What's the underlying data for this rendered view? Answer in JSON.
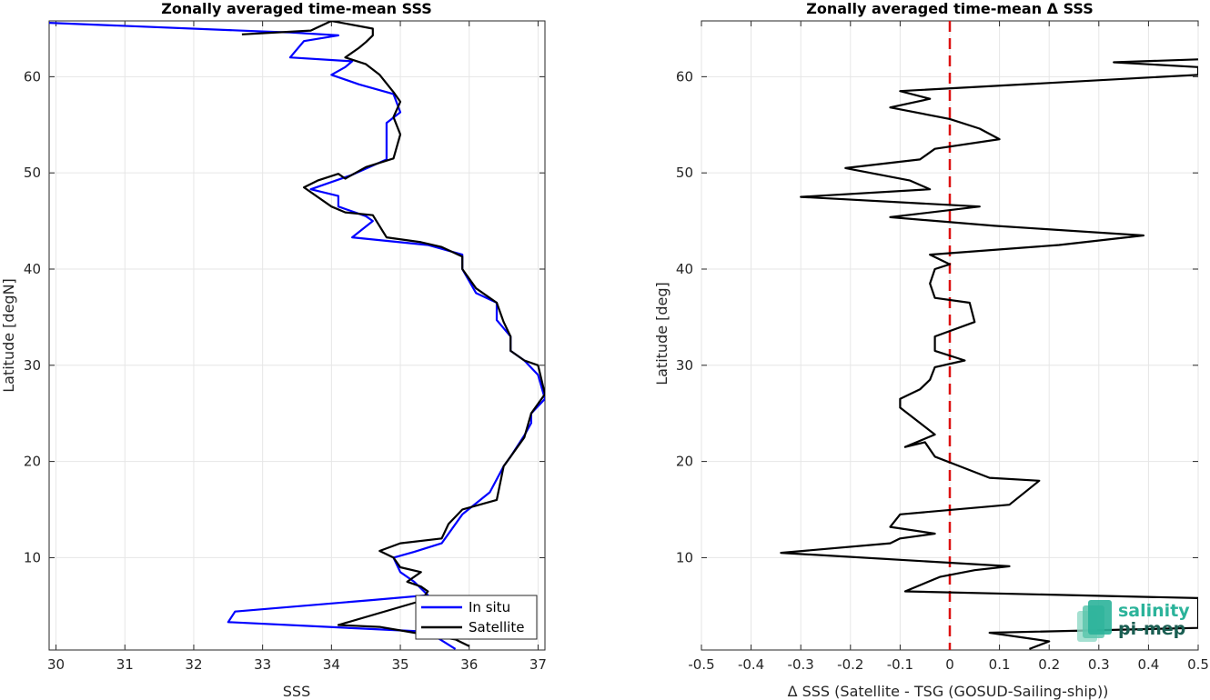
{
  "colors": {
    "insitu": "#0000ff",
    "satellite": "#000000",
    "zero_line": "#dd1111",
    "logo_top": "#2bb39a",
    "logo_bottom": "#1a5e52"
  },
  "logo": {
    "line1": "salinity",
    "line2": "pi-mep"
  },
  "chart_data": [
    {
      "type": "line",
      "title": "Zonally averaged time-mean SSS",
      "xlabel": "SSS",
      "ylabel": "Latitude [degN]",
      "xlim": [
        29.9,
        37.1
      ],
      "ylim": [
        0.4,
        65.8
      ],
      "xticks": [
        30,
        31,
        32,
        33,
        34,
        35,
        36,
        37
      ],
      "yticks": [
        10,
        20,
        30,
        40,
        50,
        60
      ],
      "grid": true,
      "legend": {
        "position": "bottom-right",
        "entries": [
          "In situ",
          "Satellite"
        ]
      },
      "series": [
        {
          "name": "In situ",
          "color": "#0000ff",
          "points": [
            [
              35.8,
              0.5
            ],
            [
              35.4,
              2.3
            ],
            [
              32.5,
              3.3
            ],
            [
              32.6,
              4.4
            ],
            [
              34.6,
              5.6
            ],
            [
              35.4,
              6.1
            ],
            [
              35.2,
              7.5
            ],
            [
              35.0,
              8.5
            ],
            [
              34.9,
              10.0
            ],
            [
              35.2,
              10.6
            ],
            [
              35.6,
              11.5
            ],
            [
              35.9,
              14.5
            ],
            [
              36.3,
              16.8
            ],
            [
              36.5,
              19.5
            ],
            [
              36.6,
              20.5
            ],
            [
              36.8,
              22.7
            ],
            [
              36.9,
              24.0
            ],
            [
              36.9,
              25.0
            ],
            [
              37.1,
              26.5
            ],
            [
              37.0,
              29.0
            ],
            [
              36.8,
              30.5
            ],
            [
              36.6,
              31.5
            ],
            [
              36.6,
              33.0
            ],
            [
              36.4,
              34.7
            ],
            [
              36.4,
              36.5
            ],
            [
              36.1,
              37.5
            ],
            [
              35.9,
              40.0
            ],
            [
              35.9,
              41.5
            ],
            [
              35.4,
              42.5
            ],
            [
              34.3,
              43.3
            ],
            [
              34.6,
              45.0
            ],
            [
              34.5,
              45.5
            ],
            [
              34.1,
              46.5
            ],
            [
              34.1,
              47.6
            ],
            [
              33.7,
              48.3
            ],
            [
              34.3,
              49.8
            ],
            [
              34.8,
              51.4
            ],
            [
              34.8,
              53.3
            ],
            [
              34.8,
              55.2
            ],
            [
              35.0,
              56.3
            ],
            [
              34.9,
              58.2
            ],
            [
              34.4,
              59.2
            ],
            [
              34.0,
              60.2
            ],
            [
              34.2,
              61.0
            ],
            [
              34.3,
              61.6
            ],
            [
              33.4,
              62.0
            ],
            [
              33.6,
              63.7
            ],
            [
              34.1,
              64.3
            ],
            [
              33.4,
              64.6
            ],
            [
              33.0,
              64.7
            ],
            [
              29.9,
              65.6
            ]
          ]
        },
        {
          "name": "Satellite",
          "color": "#000000",
          "points": [
            [
              36.0,
              0.8
            ],
            [
              35.8,
              1.5
            ],
            [
              35.2,
              2.2
            ],
            [
              34.7,
              2.8
            ],
            [
              34.1,
              3.0
            ],
            [
              35.3,
              5.5
            ],
            [
              35.4,
              6.5
            ],
            [
              35.3,
              7.0
            ],
            [
              35.1,
              7.5
            ],
            [
              35.3,
              8.5
            ],
            [
              35.0,
              9.0
            ],
            [
              34.9,
              10.0
            ],
            [
              34.7,
              10.7
            ],
            [
              35.0,
              11.5
            ],
            [
              35.6,
              12.0
            ],
            [
              35.7,
              13.5
            ],
            [
              35.9,
              15.0
            ],
            [
              36.4,
              16.0
            ],
            [
              36.5,
              19.5
            ],
            [
              36.6,
              20.5
            ],
            [
              36.8,
              22.5
            ],
            [
              36.9,
              25.0
            ],
            [
              37.1,
              27.0
            ],
            [
              37.0,
              30.0
            ],
            [
              36.8,
              30.5
            ],
            [
              36.6,
              31.5
            ],
            [
              36.6,
              33.0
            ],
            [
              36.5,
              34.5
            ],
            [
              36.4,
              36.5
            ],
            [
              36.1,
              38.0
            ],
            [
              35.9,
              40.0
            ],
            [
              35.9,
              41.3
            ],
            [
              35.6,
              42.3
            ],
            [
              35.3,
              42.8
            ],
            [
              34.8,
              43.3
            ],
            [
              34.6,
              45.6
            ],
            [
              34.2,
              45.9
            ],
            [
              34.0,
              46.5
            ],
            [
              33.6,
              48.5
            ],
            [
              33.8,
              49.2
            ],
            [
              34.1,
              49.9
            ],
            [
              34.2,
              49.4
            ],
            [
              34.5,
              50.6
            ],
            [
              34.9,
              51.5
            ],
            [
              35.0,
              54.0
            ],
            [
              34.9,
              55.8
            ],
            [
              35.0,
              57.4
            ],
            [
              34.9,
              58.4
            ],
            [
              34.7,
              60.2
            ],
            [
              34.5,
              61.3
            ],
            [
              34.2,
              62.0
            ],
            [
              34.4,
              63.0
            ],
            [
              34.5,
              63.6
            ],
            [
              34.6,
              64.3
            ],
            [
              34.6,
              65.0
            ],
            [
              34.0,
              65.8
            ],
            [
              33.7,
              64.8
            ],
            [
              32.7,
              64.4
            ]
          ]
        }
      ]
    },
    {
      "type": "line",
      "title": "Zonally averaged time-mean Δ SSS",
      "xlabel": "Δ SSS (Satellite - TSG (GOSUD-Sailing-ship))",
      "ylabel": "Latitude [deg]",
      "xlim": [
        -0.5,
        0.5
      ],
      "ylim": [
        0.4,
        65.8
      ],
      "xticks": [
        -0.5,
        -0.4,
        -0.3,
        -0.2,
        -0.1,
        0,
        0.1,
        0.2,
        0.3,
        0.4,
        0.5
      ],
      "yticks": [
        10,
        20,
        30,
        40,
        50,
        60
      ],
      "grid": true,
      "reference_line": {
        "x": 0,
        "style": "dashed",
        "color": "#dd1111"
      },
      "series": [
        {
          "name": "",
          "color": "#000000",
          "points": [
            [
              0.16,
              0.5
            ],
            [
              0.2,
              1.3
            ],
            [
              0.08,
              2.2
            ],
            [
              0.5,
              2.7
            ],
            [
              0.5,
              5.8
            ],
            [
              -0.09,
              6.5
            ],
            [
              -0.02,
              8.0
            ],
            [
              0.05,
              8.7
            ],
            [
              0.12,
              9.1
            ],
            [
              -0.34,
              10.5
            ],
            [
              -0.12,
              11.5
            ],
            [
              -0.1,
              12.0
            ],
            [
              -0.03,
              12.5
            ],
            [
              -0.12,
              13.2
            ],
            [
              -0.1,
              14.5
            ],
            [
              0.12,
              15.5
            ],
            [
              0.18,
              18.0
            ],
            [
              0.08,
              18.3
            ],
            [
              0.02,
              19.5
            ],
            [
              -0.03,
              20.5
            ],
            [
              -0.05,
              22.0
            ],
            [
              -0.09,
              21.5
            ],
            [
              -0.03,
              22.8
            ],
            [
              -0.06,
              24.0
            ],
            [
              -0.1,
              25.6
            ],
            [
              -0.1,
              26.5
            ],
            [
              -0.06,
              27.5
            ],
            [
              -0.04,
              28.5
            ],
            [
              -0.03,
              29.8
            ],
            [
              0.03,
              30.5
            ],
            [
              -0.03,
              31.5
            ],
            [
              -0.03,
              33.0
            ],
            [
              0.05,
              34.5
            ],
            [
              0.04,
              36.5
            ],
            [
              -0.03,
              37.0
            ],
            [
              -0.04,
              38.5
            ],
            [
              -0.03,
              40.0
            ],
            [
              0.0,
              40.5
            ],
            [
              -0.04,
              41.5
            ],
            [
              0.22,
              42.5
            ],
            [
              0.39,
              43.5
            ],
            [
              0.09,
              44.5
            ],
            [
              -0.12,
              45.4
            ],
            [
              0.06,
              46.5
            ],
            [
              -0.3,
              47.5
            ],
            [
              -0.04,
              48.3
            ],
            [
              -0.08,
              49.2
            ],
            [
              -0.21,
              50.5
            ],
            [
              -0.06,
              51.4
            ],
            [
              -0.03,
              52.5
            ],
            [
              0.1,
              53.5
            ],
            [
              0.06,
              54.6
            ],
            [
              0.0,
              55.6
            ],
            [
              -0.12,
              56.8
            ],
            [
              -0.04,
              57.7
            ],
            [
              -0.1,
              58.5
            ],
            [
              0.5,
              60.2
            ],
            [
              0.5,
              61.0
            ],
            [
              0.33,
              61.5
            ],
            [
              0.5,
              61.8
            ]
          ]
        }
      ]
    }
  ]
}
